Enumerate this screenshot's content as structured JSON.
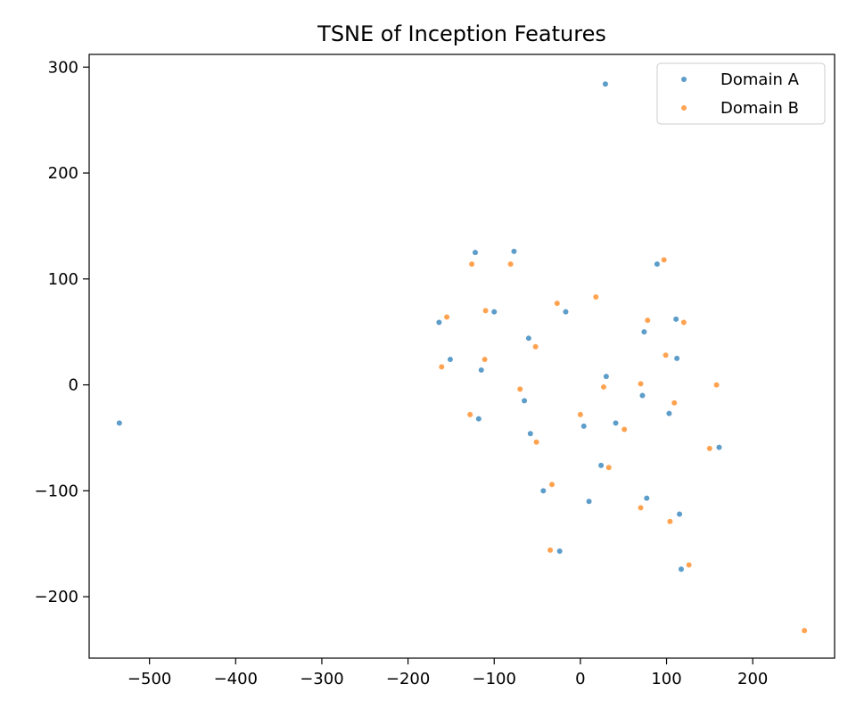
{
  "chart_data": {
    "type": "scatter",
    "title": "TSNE of Inception Features",
    "xlabel": "",
    "ylabel": "",
    "xlim": [
      -570,
      295
    ],
    "ylim": [
      -258,
      312
    ],
    "xticks": [
      -500,
      -400,
      -300,
      -200,
      -100,
      0,
      100,
      200
    ],
    "yticks": [
      -200,
      -100,
      0,
      100,
      200,
      300
    ],
    "grid": false,
    "legend_position": "upper right",
    "series": [
      {
        "name": "Domain A",
        "color": "#1f77b4",
        "points": [
          [
            29,
            284
          ],
          [
            -122,
            125
          ],
          [
            -77,
            126
          ],
          [
            89,
            114
          ],
          [
            -164,
            59
          ],
          [
            -100,
            69
          ],
          [
            -17,
            69
          ],
          [
            111,
            62
          ],
          [
            -60,
            44
          ],
          [
            74,
            50
          ],
          [
            -151,
            24
          ],
          [
            112,
            25
          ],
          [
            -115,
            14
          ],
          [
            30,
            8
          ],
          [
            -65,
            -15
          ],
          [
            72,
            -10
          ],
          [
            -118,
            -32
          ],
          [
            4,
            -39
          ],
          [
            41,
            -36
          ],
          [
            103,
            -27
          ],
          [
            -58,
            -46
          ],
          [
            24,
            -76
          ],
          [
            161,
            -59
          ],
          [
            -43,
            -100
          ],
          [
            10,
            -110
          ],
          [
            77,
            -107
          ],
          [
            115,
            -122
          ],
          [
            -24,
            -157
          ],
          [
            117,
            -174
          ],
          [
            -535,
            -36
          ]
        ]
      },
      {
        "name": "Domain B",
        "color": "#ff7f0e",
        "points": [
          [
            -126,
            114
          ],
          [
            -81,
            114
          ],
          [
            97,
            118
          ],
          [
            18,
            83
          ],
          [
            -27,
            77
          ],
          [
            -110,
            70
          ],
          [
            -155,
            64
          ],
          [
            78,
            61
          ],
          [
            120,
            59
          ],
          [
            -52,
            36
          ],
          [
            -111,
            24
          ],
          [
            99,
            28
          ],
          [
            -161,
            17
          ],
          [
            -70,
            -4
          ],
          [
            27,
            -2
          ],
          [
            70,
            1
          ],
          [
            109,
            -17
          ],
          [
            158,
            0
          ],
          [
            -128,
            -28
          ],
          [
            0,
            -28
          ],
          [
            51,
            -42
          ],
          [
            -51,
            -54
          ],
          [
            150,
            -60
          ],
          [
            33,
            -78
          ],
          [
            -33,
            -94
          ],
          [
            70,
            -116
          ],
          [
            104,
            -129
          ],
          [
            -35,
            -156
          ],
          [
            126,
            -170
          ],
          [
            260,
            -232
          ]
        ]
      }
    ]
  }
}
